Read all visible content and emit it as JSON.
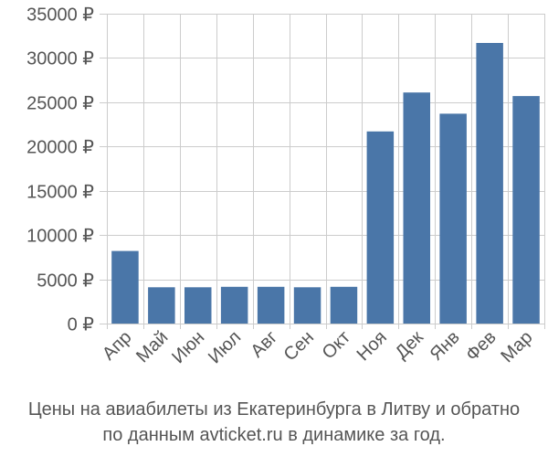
{
  "chart_data": {
    "type": "bar",
    "title": "Цены на авиабилеты из Екатеринбурга в Литву и обратно по данным avticket.ru в динамике за год.",
    "caption_lines": [
      "Цены на авиабилеты из Екатеринбурга в Литву и обратно",
      "по данным avticket.ru в динамике за год."
    ],
    "categories": [
      "Апр",
      "Май",
      "Июн",
      "Июл",
      "Авг",
      "Сен",
      "Окт",
      "Ноя",
      "Дек",
      "Янв",
      "Фев",
      "Мар"
    ],
    "values": [
      8200,
      4100,
      4100,
      4150,
      4150,
      4100,
      4150,
      21700,
      26100,
      23700,
      31700,
      25700
    ],
    "ylim": [
      0,
      35000
    ],
    "yticks": [
      0,
      5000,
      10000,
      15000,
      20000,
      25000,
      30000,
      35000
    ],
    "ytick_labels": [
      "0 ₽",
      "5000 ₽",
      "10000 ₽",
      "15000 ₽",
      "20000 ₽",
      "25000 ₽",
      "30000 ₽",
      "35000 ₽"
    ],
    "xlabel": "",
    "ylabel": "",
    "grid": true,
    "bar_color": "#4a76a8",
    "grid_color": "#cccccc"
  }
}
